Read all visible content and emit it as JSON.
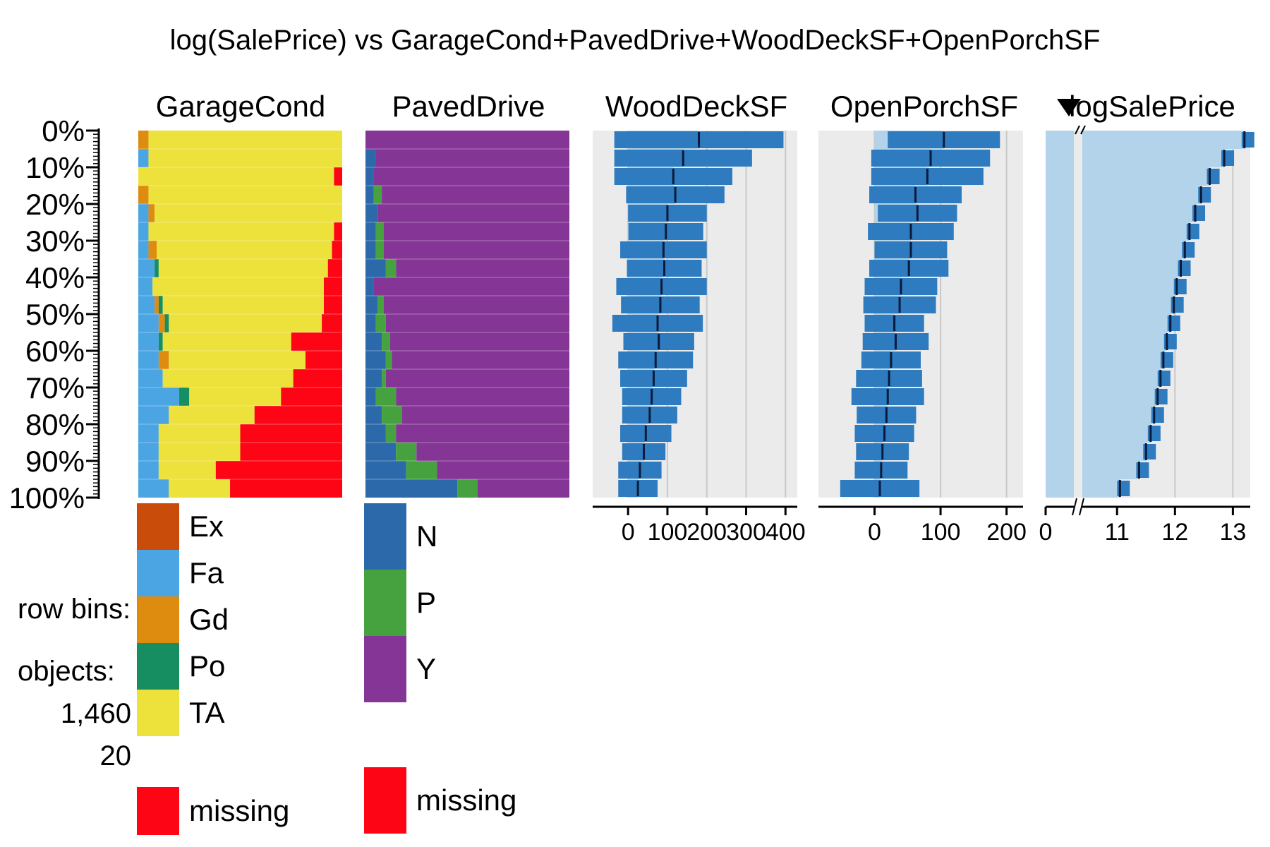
{
  "title": "log(SalePrice) vs GarageCond+PavedDrive+WoodDeckSF+OpenPorchSF",
  "footer": {
    "row_bins_label": "row bins:",
    "row_bins_value": "20",
    "objects_label": "objects:",
    "objects_value": "1,460"
  },
  "chart_data": {
    "type": "tableplot",
    "sorted_by": "logSalePrice",
    "sort_decreasing": true,
    "n_objects": 1460,
    "n_bins": 20,
    "y_axis": {
      "ticks": [
        "0%",
        "10%",
        "20%",
        "30%",
        "40%",
        "50%",
        "60%",
        "70%",
        "80%",
        "90%",
        "100%"
      ],
      "minor_step_percent": 1
    },
    "categorical": [
      {
        "name": "GarageCond",
        "legend": [
          "Ex",
          "Fa",
          "Gd",
          "Po",
          "TA"
        ],
        "colors": {
          "Ex": "#c94c0b",
          "Fa": "#4ba5e3",
          "Gd": "#de8c0f",
          "Po": "#178e61",
          "TA": "#ede13c",
          "missing": "#fd0515"
        },
        "missing_label": "missing",
        "bin_composition": [
          {
            "Ex": 0.0,
            "Fa": 0.0,
            "Gd": 0.05,
            "Po": 0.0,
            "TA": 0.95,
            "missing": 0.0
          },
          {
            "Ex": 0.0,
            "Fa": 0.05,
            "Gd": 0.0,
            "Po": 0.0,
            "TA": 0.95,
            "missing": 0.0
          },
          {
            "Ex": 0.0,
            "Fa": 0.0,
            "Gd": 0.0,
            "Po": 0.0,
            "TA": 0.96,
            "missing": 0.04
          },
          {
            "Ex": 0.0,
            "Fa": 0.0,
            "Gd": 0.05,
            "Po": 0.0,
            "TA": 0.95,
            "missing": 0.0
          },
          {
            "Ex": 0.0,
            "Fa": 0.05,
            "Gd": 0.03,
            "Po": 0.0,
            "TA": 0.92,
            "missing": 0.0
          },
          {
            "Ex": 0.0,
            "Fa": 0.05,
            "Gd": 0.0,
            "Po": 0.0,
            "TA": 0.91,
            "missing": 0.04
          },
          {
            "Ex": 0.0,
            "Fa": 0.05,
            "Gd": 0.04,
            "Po": 0.0,
            "TA": 0.86,
            "missing": 0.05
          },
          {
            "Ex": 0.0,
            "Fa": 0.08,
            "Gd": 0.0,
            "Po": 0.02,
            "TA": 0.83,
            "missing": 0.07
          },
          {
            "Ex": 0.0,
            "Fa": 0.07,
            "Gd": 0.0,
            "Po": 0.0,
            "TA": 0.84,
            "missing": 0.09
          },
          {
            "Ex": 0.0,
            "Fa": 0.08,
            "Gd": 0.02,
            "Po": 0.02,
            "TA": 0.79,
            "missing": 0.09
          },
          {
            "Ex": 0.0,
            "Fa": 0.1,
            "Gd": 0.03,
            "Po": 0.02,
            "TA": 0.75,
            "missing": 0.1
          },
          {
            "Ex": 0.0,
            "Fa": 0.1,
            "Gd": 0.0,
            "Po": 0.02,
            "TA": 0.63,
            "missing": 0.25
          },
          {
            "Ex": 0.0,
            "Fa": 0.1,
            "Gd": 0.05,
            "Po": 0.0,
            "TA": 0.67,
            "missing": 0.18
          },
          {
            "Ex": 0.0,
            "Fa": 0.12,
            "Gd": 0.0,
            "Po": 0.0,
            "TA": 0.64,
            "missing": 0.24
          },
          {
            "Ex": 0.0,
            "Fa": 0.2,
            "Gd": 0.0,
            "Po": 0.05,
            "TA": 0.45,
            "missing": 0.3
          },
          {
            "Ex": 0.0,
            "Fa": 0.15,
            "Gd": 0.0,
            "Po": 0.0,
            "TA": 0.42,
            "missing": 0.43
          },
          {
            "Ex": 0.0,
            "Fa": 0.1,
            "Gd": 0.0,
            "Po": 0.0,
            "TA": 0.4,
            "missing": 0.5
          },
          {
            "Ex": 0.0,
            "Fa": 0.1,
            "Gd": 0.0,
            "Po": 0.0,
            "TA": 0.4,
            "missing": 0.5
          },
          {
            "Ex": 0.0,
            "Fa": 0.1,
            "Gd": 0.0,
            "Po": 0.0,
            "TA": 0.28,
            "missing": 0.62
          },
          {
            "Ex": 0.0,
            "Fa": 0.15,
            "Gd": 0.0,
            "Po": 0.0,
            "TA": 0.3,
            "missing": 0.55
          }
        ]
      },
      {
        "name": "PavedDrive",
        "legend": [
          "N",
          "P",
          "Y"
        ],
        "colors": {
          "N": "#2c69aa",
          "P": "#45a23f",
          "Y": "#843595",
          "missing": "#fd0515"
        },
        "missing_label": "missing",
        "bin_composition": [
          {
            "N": 0.0,
            "P": 0.0,
            "Y": 1.0
          },
          {
            "N": 0.05,
            "P": 0.0,
            "Y": 0.95
          },
          {
            "N": 0.04,
            "P": 0.0,
            "Y": 0.96
          },
          {
            "N": 0.04,
            "P": 0.04,
            "Y": 0.92
          },
          {
            "N": 0.06,
            "P": 0.0,
            "Y": 0.94
          },
          {
            "N": 0.05,
            "P": 0.04,
            "Y": 0.91
          },
          {
            "N": 0.05,
            "P": 0.04,
            "Y": 0.91
          },
          {
            "N": 0.1,
            "P": 0.05,
            "Y": 0.85
          },
          {
            "N": 0.04,
            "P": 0.0,
            "Y": 0.96
          },
          {
            "N": 0.06,
            "P": 0.03,
            "Y": 0.91
          },
          {
            "N": 0.05,
            "P": 0.05,
            "Y": 0.9
          },
          {
            "N": 0.08,
            "P": 0.04,
            "Y": 0.88
          },
          {
            "N": 0.1,
            "P": 0.03,
            "Y": 0.87
          },
          {
            "N": 0.08,
            "P": 0.02,
            "Y": 0.9
          },
          {
            "N": 0.05,
            "P": 0.1,
            "Y": 0.85
          },
          {
            "N": 0.08,
            "P": 0.1,
            "Y": 0.82
          },
          {
            "N": 0.1,
            "P": 0.05,
            "Y": 0.85
          },
          {
            "N": 0.15,
            "P": 0.1,
            "Y": 0.75
          },
          {
            "N": 0.2,
            "P": 0.15,
            "Y": 0.65
          },
          {
            "N": 0.45,
            "P": 0.1,
            "Y": 0.45
          }
        ]
      }
    ],
    "numeric": [
      {
        "name": "WoodDeckSF",
        "xlim": [
          -90,
          430
        ],
        "ticks": [
          0,
          100,
          200,
          300,
          400
        ],
        "tick_labels": [
          "0",
          "100",
          "200",
          "300",
          "400"
        ],
        "bin_mean": [
          180,
          140,
          115,
          120,
          100,
          96,
          90,
          92,
          85,
          82,
          75,
          78,
          70,
          65,
          60,
          55,
          45,
          40,
          30,
          25
        ],
        "bin_sd": [
          215,
          175,
          150,
          125,
          100,
          95,
          110,
          95,
          115,
          100,
          115,
          90,
          95,
          85,
          75,
          70,
          65,
          55,
          55,
          50
        ]
      },
      {
        "name": "OpenPorchSF",
        "xlim": [
          -85,
          225
        ],
        "ticks": [
          0,
          100,
          200
        ],
        "tick_labels": [
          "0",
          "100",
          "200"
        ],
        "bin_mean": [
          105,
          85,
          80,
          62,
          65,
          55,
          55,
          52,
          40,
          38,
          30,
          32,
          25,
          22,
          20,
          18,
          15,
          12,
          10,
          8
        ],
        "bin_sd": [
          85,
          90,
          85,
          70,
          60,
          65,
          55,
          60,
          55,
          55,
          45,
          50,
          45,
          50,
          55,
          45,
          45,
          40,
          40,
          60
        ]
      },
      {
        "name": "logSalePrice",
        "xlim": [
          0,
          13.3
        ],
        "broken_axis": true,
        "ticks": [
          0,
          11,
          12,
          13
        ],
        "tick_labels": [
          "0",
          "11",
          "12",
          "13"
        ],
        "bin_mean": [
          13.2,
          12.85,
          12.6,
          12.45,
          12.35,
          12.25,
          12.17,
          12.1,
          12.03,
          11.98,
          11.92,
          11.86,
          11.8,
          11.75,
          11.7,
          11.64,
          11.58,
          11.5,
          11.38,
          11.05
        ]
      }
    ]
  }
}
